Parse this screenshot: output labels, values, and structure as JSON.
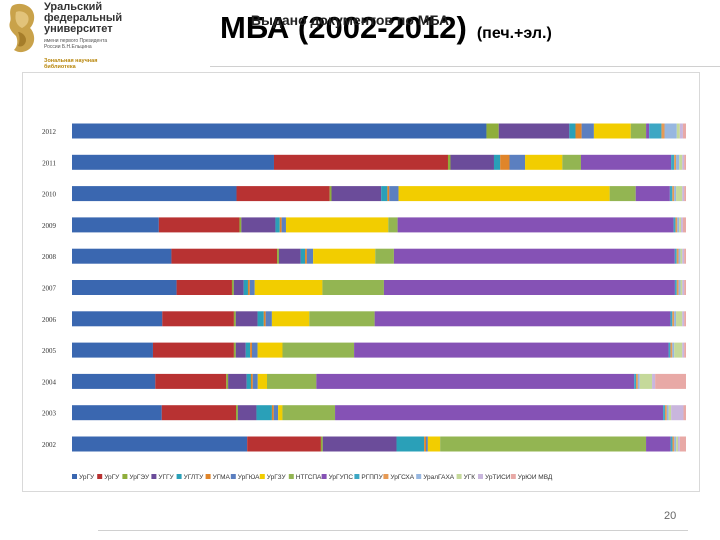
{
  "header": {
    "logo_lines": [
      "Уральский",
      "федеральный",
      "университет"
    ],
    "logo_sub": [
      "имени первого Президента",
      "России Б.Н.Ельцина"
    ],
    "logo_lib": [
      "Зональная научная",
      "библиотека"
    ],
    "title": "МБА (2002-2012)",
    "title_suffix": "(печ.+эл.)",
    "page_number": "20"
  },
  "chart_data": {
    "type": "bar",
    "orientation": "horizontal",
    "stacked": "percent",
    "title": "Выдано документов по МБА",
    "categories": [
      "2012",
      "2011",
      "2010",
      "2009",
      "2008",
      "2007",
      "2006",
      "2005",
      "2004",
      "2003",
      "2002"
    ],
    "legend_position": "bottom",
    "grid": false,
    "series": [
      {
        "name": "УрГУ",
        "color": "#3a67b0",
        "values": [
          67.5,
          32.5,
          26.5,
          14,
          16,
          17,
          14.5,
          13,
          13.5,
          14.5,
          28.5
        ]
      },
      {
        "name": "УрГУ",
        "color": "#b83232",
        "values": [
          0,
          28,
          15,
          13,
          17,
          9,
          11.5,
          13,
          11.5,
          12,
          12
        ]
      },
      {
        "name": "УрГЭУ",
        "color": "#8fae3b",
        "values": [
          2,
          0.4,
          0.3,
          0.3,
          0.3,
          0.3,
          0.3,
          0.3,
          0.3,
          0.3,
          0.3
        ]
      },
      {
        "name": "УГГУ",
        "color": "#6b4c9a",
        "values": [
          11.5,
          7,
          8,
          5.5,
          3.5,
          1.6,
          3.5,
          1.6,
          3,
          3,
          12
        ]
      },
      {
        "name": "УГЛТУ",
        "color": "#2aa0b8",
        "values": [
          1,
          1,
          1,
          0.7,
          0.7,
          0.7,
          1,
          0.7,
          0.7,
          2.5,
          4.5
        ]
      },
      {
        "name": "УГМА",
        "color": "#e0852a",
        "values": [
          1,
          1.5,
          0.3,
          0.3,
          0.3,
          0.3,
          0.3,
          0.3,
          0.3,
          0.3,
          0.3
        ]
      },
      {
        "name": "УрГЮА",
        "color": "#5b7fc0",
        "values": [
          2,
          2.5,
          1.5,
          0.7,
          1,
          0.8,
          1,
          0.9,
          0.8,
          0.7,
          0.3
        ]
      },
      {
        "name": "УрГЗУ",
        "color": "#f2cd00",
        "values": [
          6,
          6,
          34,
          16.5,
          10,
          11,
          6,
          4,
          1.5,
          0.7,
          2
        ]
      },
      {
        "name": "НТГСПА",
        "color": "#93b552",
        "values": [
          2.5,
          3,
          4.2,
          1.5,
          3,
          10,
          10.5,
          11.5,
          8,
          8.5,
          33.5
        ]
      },
      {
        "name": "УрГУПС",
        "color": "#8552b5",
        "values": [
          0.5,
          14.5,
          5.5,
          44.5,
          45.2,
          47.3,
          47.5,
          50.5,
          51.5,
          53,
          4
        ]
      },
      {
        "name": "РГППУ",
        "color": "#3da7c4",
        "values": [
          2,
          0.5,
          0.4,
          0.3,
          0.3,
          0.3,
          0.3,
          0.3,
          0.3,
          0.3,
          0.3
        ]
      },
      {
        "name": "УрГСХА",
        "color": "#e69a55",
        "values": [
          0.5,
          0.3,
          0.3,
          0.3,
          0.3,
          0.3,
          0.3,
          0.3,
          0.3,
          0.3,
          0.3
        ]
      },
      {
        "name": "УралГАХА",
        "color": "#97b7e0",
        "values": [
          2,
          0.5,
          0.3,
          0.3,
          0.3,
          0.3,
          0.3,
          0.3,
          0.3,
          0.3,
          0.3
        ]
      },
      {
        "name": "УГК",
        "color": "#c5d99a",
        "values": [
          0.5,
          0.5,
          1,
          0.3,
          0.3,
          0.3,
          1,
          1.3,
          2,
          0.4,
          0.3
        ]
      },
      {
        "name": "УрТИСИ",
        "color": "#c9b6dd",
        "values": [
          0.5,
          0.3,
          0.3,
          0.3,
          0.3,
          0.3,
          0.3,
          0.3,
          0.5,
          2,
          0.3
        ]
      },
      {
        "name": "УрЮИ МВД",
        "color": "#e8a9a6",
        "values": [
          0.5,
          0.3,
          0.3,
          0.5,
          0.3,
          0.3,
          0.3,
          0.3,
          5,
          0.4,
          1
        ]
      }
    ]
  }
}
